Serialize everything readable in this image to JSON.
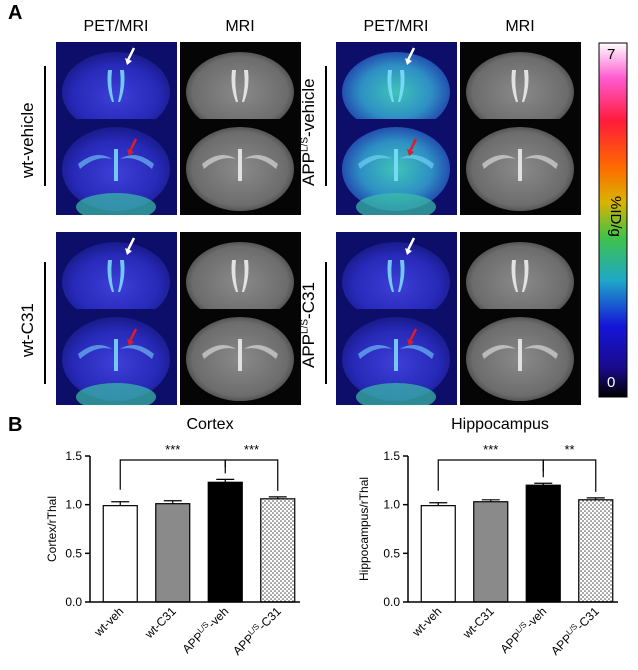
{
  "panel_a": {
    "letter": "A",
    "column_headers": [
      "PET/MRI",
      "MRI",
      "PET/MRI",
      "MRI"
    ],
    "row_labels": {
      "wt_vehicle": "wt-vehicle",
      "wt_c31": "wt-C31",
      "app_vehicle": {
        "base": "APP",
        "sup": "L/S",
        "suffix": "-vehicle"
      },
      "app_c31": {
        "base": "APP",
        "sup": "L/S",
        "suffix": "-C31"
      }
    },
    "colorbar": {
      "max": "7",
      "min": "0",
      "unit": "%ID/g"
    },
    "arrow_colors": {
      "white": "#ffffff",
      "red": "#e01c24"
    }
  },
  "panel_b": {
    "letter": "B"
  },
  "chart_data": [
    {
      "type": "bar",
      "title": "Cortex",
      "ylabel": "Cortex/rThal",
      "xlabel": "",
      "ylim": [
        0.0,
        1.5
      ],
      "yticks": [
        "0.0",
        "0.5",
        "1.0",
        "1.5"
      ],
      "categories": [
        "wt-veh",
        "wt-C31",
        "APP L/S-veh",
        "APP L/S-C31"
      ],
      "category_labels": [
        {
          "base": "wt-veh",
          "sup": "",
          "suffix": ""
        },
        {
          "base": "wt-C31",
          "sup": "",
          "suffix": ""
        },
        {
          "base": "APP",
          "sup": "L/S",
          "suffix": "-veh"
        },
        {
          "base": "APP",
          "sup": "L/S",
          "suffix": "-C31"
        }
      ],
      "values": [
        0.99,
        1.01,
        1.23,
        1.06
      ],
      "errors": [
        0.04,
        0.03,
        0.03,
        0.02
      ],
      "fills": [
        "white",
        "gray",
        "black",
        "dotted"
      ],
      "significance": [
        {
          "from": 0,
          "to": 2,
          "label": "***"
        },
        {
          "from": 2,
          "to": 3,
          "label": "***"
        }
      ]
    },
    {
      "type": "bar",
      "title": "Hippocampus",
      "ylabel": "Hippocampus/rThal",
      "xlabel": "",
      "ylim": [
        0.0,
        1.5
      ],
      "yticks": [
        "0.0",
        "0.5",
        "1.0",
        "1.5"
      ],
      "categories": [
        "wt-veh",
        "wt-C31",
        "APP L/S-veh",
        "APP L/S-C31"
      ],
      "category_labels": [
        {
          "base": "wt-veh",
          "sup": "",
          "suffix": ""
        },
        {
          "base": "wt-C31",
          "sup": "",
          "suffix": ""
        },
        {
          "base": "APP",
          "sup": "L/S",
          "suffix": "-veh"
        },
        {
          "base": "APP",
          "sup": "L/S",
          "suffix": "-C31"
        }
      ],
      "values": [
        0.99,
        1.03,
        1.2,
        1.05
      ],
      "errors": [
        0.03,
        0.02,
        0.02,
        0.02
      ],
      "fills": [
        "white",
        "gray",
        "black",
        "dotted"
      ],
      "significance": [
        {
          "from": 0,
          "to": 2,
          "label": "***"
        },
        {
          "from": 2,
          "to": 3,
          "label": "**"
        }
      ]
    }
  ]
}
